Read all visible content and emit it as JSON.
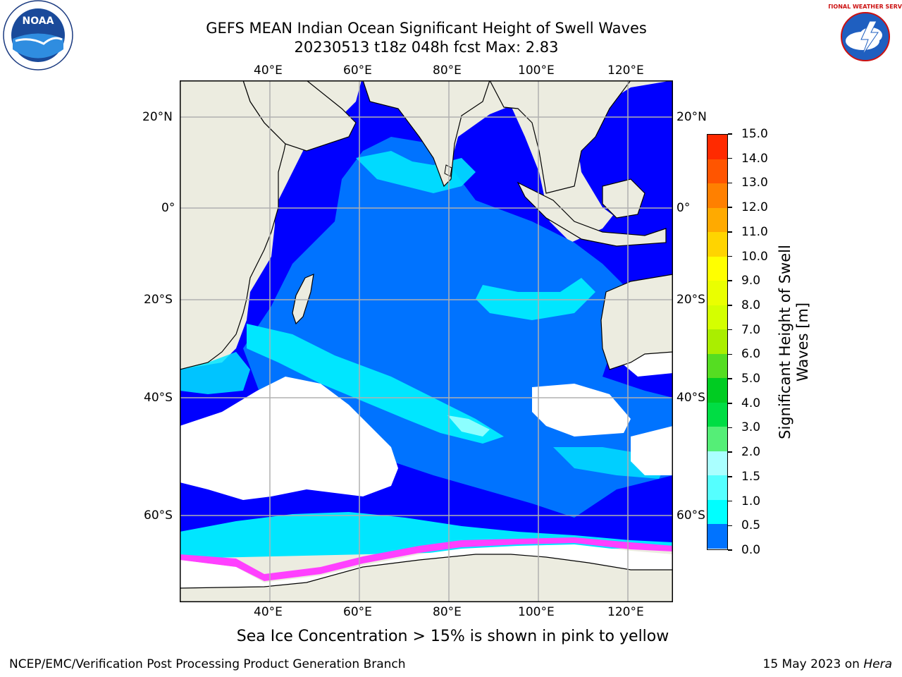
{
  "title": {
    "line1": "GEFS MEAN Indian Ocean Significant Height of Swell Waves",
    "line2": "20230513 t18z 048h fcst   Max: 2.83"
  },
  "map": {
    "lon_ticks_top": [
      "40°E",
      "60°E",
      "80°E",
      "100°E",
      "120°E"
    ],
    "lon_ticks_bottom": [
      "40°E",
      "60°E",
      "80°E",
      "100°E",
      "120°E"
    ],
    "lat_ticks_left": [
      "20°N",
      "0°",
      "20°S",
      "40°S",
      "60°S"
    ],
    "lat_ticks_right": [
      "20°N",
      "0°",
      "20°S",
      "40°S",
      "60°S"
    ],
    "colors": {
      "land": "#ecece0",
      "ocean_low": "#0000ff",
      "ocean_mid": "#0073ff",
      "ocean_cyan": "#00e6ff",
      "ocean_lightcyan": "#8cffff",
      "ice_pink": "#ff40ff",
      "ice_yellow": "#ffcc33",
      "grid": "#b0b0b0"
    }
  },
  "colorbar": {
    "label": "Significant Height of Swell Waves [m]",
    "ticks": [
      "15.0",
      "14.0",
      "13.0",
      "12.0",
      "11.0",
      "10.0",
      "9.0",
      "8.0",
      "7.0",
      "6.0",
      "5.0",
      "4.0",
      "3.0",
      "2.0",
      "1.5",
      "1.0",
      "0.5",
      "0.0"
    ],
    "colors": [
      "#ff0000",
      "#ff2a00",
      "#ff5500",
      "#ff8000",
      "#ffaa00",
      "#ffd400",
      "#ffff00",
      "#eaff00",
      "#d4ff00",
      "#aaee00",
      "#55dd22",
      "#00cc22",
      "#00dd44",
      "#55ee77",
      "#aaffff",
      "#55ffff",
      "#00ffff",
      "#0073ff",
      "#0000ff"
    ]
  },
  "caption": "Sea Ice Concentration > 15% is shown in pink to yellow",
  "footer": {
    "left": "NCEP/EMC/Verification Post Processing Product Generation Branch",
    "right_prefix": "15 May 2023 on ",
    "right_host": "Hera"
  },
  "logos": {
    "noaa_text": "NOAA",
    "nws_text": "NATIONAL WEATHER SERVICE"
  }
}
